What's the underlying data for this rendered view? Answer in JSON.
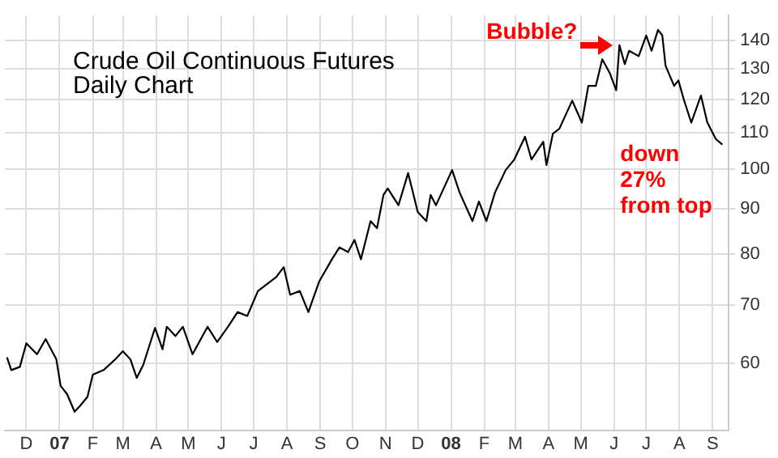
{
  "chart_data": {
    "type": "line",
    "title": "Crude Oil Continuous Futures",
    "subtitle": "Daily Chart",
    "x": [
      "2006-11-13",
      "2006-11-17",
      "2006-11-25",
      "2006-12-01",
      "2006-12-11",
      "2006-12-19",
      "2006-12-29",
      "2007-01-02",
      "2007-01-08",
      "2007-01-15",
      "2007-01-20",
      "2007-01-27",
      "2007-02-01",
      "2007-02-11",
      "2007-02-22",
      "2007-03-01",
      "2007-03-08",
      "2007-03-14",
      "2007-03-20",
      "2007-03-31",
      "2007-04-07",
      "2007-04-11",
      "2007-04-19",
      "2007-04-26",
      "2007-05-05",
      "2007-05-19",
      "2007-05-28",
      "2007-06-07",
      "2007-06-16",
      "2007-06-25",
      "2007-07-05",
      "2007-07-22",
      "2007-07-29",
      "2007-08-04",
      "2007-08-13",
      "2007-08-21",
      "2007-08-31",
      "2007-09-12",
      "2007-09-19",
      "2007-09-27",
      "2007-10-03",
      "2007-10-09",
      "2007-10-18",
      "2007-10-24",
      "2007-10-30",
      "2007-11-03",
      "2007-11-13",
      "2007-11-22",
      "2007-12-01",
      "2007-12-09",
      "2007-12-13",
      "2007-12-18",
      "2008-01-02",
      "2008-01-09",
      "2008-01-21",
      "2008-01-27",
      "2008-02-03",
      "2008-02-11",
      "2008-02-21",
      "2008-02-29",
      "2008-03-10",
      "2008-03-16",
      "2008-03-27",
      "2008-03-30",
      "2008-04-05",
      "2008-04-11",
      "2008-04-23",
      "2008-05-02",
      "2008-05-08",
      "2008-05-15",
      "2008-05-21",
      "2008-05-28",
      "2008-06-03",
      "2008-06-06",
      "2008-06-11",
      "2008-06-15",
      "2008-06-24",
      "2008-07-01",
      "2008-07-06",
      "2008-07-12",
      "2008-07-16",
      "2008-07-19",
      "2008-07-27",
      "2008-07-31",
      "2008-08-05",
      "2008-08-12",
      "2008-08-21",
      "2008-08-27",
      "2008-09-04",
      "2008-09-10"
    ],
    "series": [
      {
        "color": "#000000",
        "values": [
          61.0,
          59.0,
          59.5,
          63.3,
          61.5,
          64.0,
          60.7,
          56.6,
          55.4,
          52.9,
          53.7,
          55.0,
          58.3,
          59.0,
          60.7,
          62.0,
          60.7,
          57.8,
          59.8,
          65.9,
          62.3,
          66.1,
          64.5,
          66.1,
          61.5,
          66.1,
          63.5,
          66.1,
          68.7,
          68.0,
          72.6,
          75.3,
          77.3,
          71.9,
          72.6,
          68.7,
          74.4,
          78.9,
          81.4,
          80.4,
          83.0,
          78.9,
          87.2,
          85.6,
          93.4,
          95.0,
          90.9,
          98.9,
          89.3,
          87.2,
          93.4,
          90.9,
          99.7,
          94.0,
          87.2,
          91.8,
          87.2,
          94.0,
          99.7,
          102.5,
          108.8,
          102.5,
          107.4,
          101.0,
          109.7,
          111.1,
          119.6,
          112.9,
          124.3,
          124.3,
          133.3,
          128.6,
          122.9,
          138.3,
          131.6,
          136.3,
          134.4,
          141.9,
          136.3,
          144.0,
          141.9,
          131.1,
          124.3,
          126.1,
          120.0,
          112.9,
          121.2,
          112.9,
          108.1,
          106.6
        ]
      }
    ],
    "xlim": [
      "2006-11-11",
      "2008-09-16"
    ],
    "xticks": [
      {
        "value": "2006-12-01",
        "label": "D"
      },
      {
        "value": "2007-01-01",
        "label": "07"
      },
      {
        "value": "2007-02-01",
        "label": "F"
      },
      {
        "value": "2007-03-01",
        "label": "M"
      },
      {
        "value": "2007-04-01",
        "label": "A"
      },
      {
        "value": "2007-05-01",
        "label": "M"
      },
      {
        "value": "2007-06-01",
        "label": "J"
      },
      {
        "value": "2007-07-01",
        "label": "J"
      },
      {
        "value": "2007-08-01",
        "label": "A"
      },
      {
        "value": "2007-09-01",
        "label": "S"
      },
      {
        "value": "2007-10-01",
        "label": "O"
      },
      {
        "value": "2007-11-01",
        "label": "N"
      },
      {
        "value": "2007-12-01",
        "label": "D"
      },
      {
        "value": "2008-01-01",
        "label": "08"
      },
      {
        "value": "2008-02-01",
        "label": "F"
      },
      {
        "value": "2008-03-01",
        "label": "M"
      },
      {
        "value": "2008-04-01",
        "label": "A"
      },
      {
        "value": "2008-05-01",
        "label": "M"
      },
      {
        "value": "2008-06-01",
        "label": "J"
      },
      {
        "value": "2008-07-01",
        "label": "J"
      },
      {
        "value": "2008-08-01",
        "label": "A"
      },
      {
        "value": "2008-09-01",
        "label": "S"
      }
    ],
    "ylim": [
      50.4,
      149.5
    ],
    "yticks": [
      60,
      70,
      80,
      90,
      100,
      110,
      120,
      130,
      140
    ],
    "log": "y",
    "grid": true,
    "legend": false,
    "marker": "none",
    "line_style": "solid",
    "annotations": [
      {
        "text": "Bubble?",
        "x": "2008-06-03",
        "y": 138.3
      },
      "down 27% from top"
    ]
  }
}
